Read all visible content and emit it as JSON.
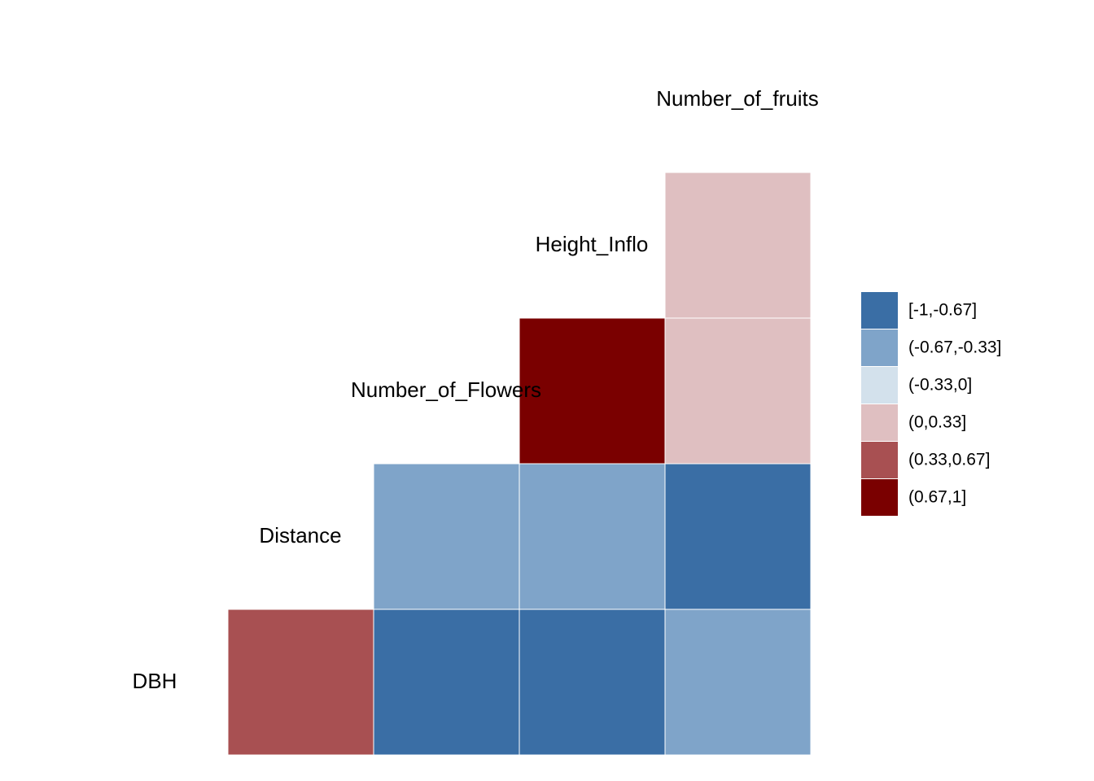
{
  "chart_data": {
    "type": "heatmap",
    "variables": [
      "DBH",
      "Distance",
      "Number_of_Flowers",
      "Height_Inflo",
      "Number_of_fruits"
    ],
    "row_labels": [
      "Number_of_fruits",
      "Height_Inflo",
      "Number_of_Flowers",
      "Distance",
      "DBH"
    ],
    "cells": [
      {
        "row": "Height_Inflo",
        "col": "Number_of_fruits",
        "bin": "(0,0.33]"
      },
      {
        "row": "Number_of_Flowers",
        "col": "Height_Inflo",
        "bin": "(0.67,1]"
      },
      {
        "row": "Number_of_Flowers",
        "col": "Number_of_fruits",
        "bin": "(0,0.33]"
      },
      {
        "row": "Distance",
        "col": "Number_of_Flowers",
        "bin": "(-0.67,-0.33]"
      },
      {
        "row": "Distance",
        "col": "Height_Inflo",
        "bin": "(-0.67,-0.33]"
      },
      {
        "row": "Distance",
        "col": "Number_of_fruits",
        "bin": "[-1,-0.67]"
      },
      {
        "row": "DBH",
        "col": "Distance",
        "bin": "(0.33,0.67]"
      },
      {
        "row": "DBH",
        "col": "Number_of_Flowers",
        "bin": "[-1,-0.67]"
      },
      {
        "row": "DBH",
        "col": "Height_Inflo",
        "bin": "[-1,-0.67]"
      },
      {
        "row": "DBH",
        "col": "Number_of_fruits",
        "bin": "(-0.67,-0.33]"
      }
    ],
    "legend": [
      {
        "label": "[-1,-0.67]",
        "color": "#3A6EA5"
      },
      {
        "label": "(-0.67,-0.33]",
        "color": "#7FA4C9"
      },
      {
        "label": "(-0.33,0]",
        "color": "#D3E1EC"
      },
      {
        "label": "(0,0.33]",
        "color": "#DFBFC1"
      },
      {
        "label": "(0.33,0.67]",
        "color": "#A85052"
      },
      {
        "label": "(0.67,1]",
        "color": "#7A0000"
      }
    ],
    "legend_position": "right"
  }
}
